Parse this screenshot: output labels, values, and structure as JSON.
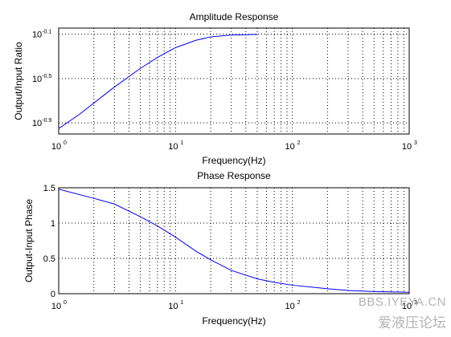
{
  "chart_data": [
    {
      "type": "line",
      "title": "Amplitude Response",
      "xlabel": "Frequency(Hz)",
      "ylabel": "Output/Input Ratio",
      "x_scale": "log",
      "y_scale": "log",
      "xlim": [
        1,
        1000
      ],
      "ylim": [
        0.1,
        0.9
      ],
      "grid": true,
      "x_ticks": [
        {
          "base": "10",
          "exp": "0"
        },
        {
          "base": "10",
          "exp": "1"
        },
        {
          "base": "10",
          "exp": "2"
        },
        {
          "base": "10",
          "exp": "3"
        }
      ],
      "y_ticks": [
        {
          "value": 0.1259,
          "base": "10",
          "exp": "-0.9"
        },
        {
          "value": 0.3162,
          "base": "10",
          "exp": "-0.5"
        },
        {
          "value": 0.7943,
          "base": "10",
          "exp": "-0.1"
        }
      ],
      "series": [
        {
          "color": "#0000ff",
          "x": [
            1,
            1.5,
            2,
            3,
            5,
            7,
            10,
            15,
            20,
            30,
            50
          ],
          "y": [
            0.112,
            0.15,
            0.19,
            0.265,
            0.39,
            0.49,
            0.6,
            0.7,
            0.75,
            0.78,
            0.79
          ]
        }
      ]
    },
    {
      "type": "line",
      "title": "Phase Response",
      "xlabel": "Frequency(Hz)",
      "ylabel": "Output-Input Phase",
      "x_scale": "log",
      "y_scale": "linear",
      "xlim": [
        1,
        1000
      ],
      "ylim": [
        0,
        1.5
      ],
      "grid": true,
      "x_ticks": [
        {
          "base": "10",
          "exp": "0"
        },
        {
          "base": "10",
          "exp": "1"
        },
        {
          "base": "10",
          "exp": "2"
        },
        {
          "base": "10",
          "exp": "3"
        }
      ],
      "y_ticks": [
        {
          "value": 0,
          "label": "0"
        },
        {
          "value": 0.5,
          "label": "0.5"
        },
        {
          "value": 1,
          "label": "1"
        },
        {
          "value": 1.5,
          "label": "1.5"
        }
      ],
      "series": [
        {
          "color": "#0000ff",
          "x": [
            1,
            2,
            3,
            5,
            7,
            10,
            15,
            20,
            30,
            50,
            70,
            100,
            200,
            300,
            500,
            1000
          ],
          "y": [
            1.48,
            1.35,
            1.27,
            1.09,
            0.96,
            0.8,
            0.6,
            0.48,
            0.33,
            0.21,
            0.16,
            0.12,
            0.07,
            0.045,
            0.03,
            0.02
          ]
        }
      ]
    }
  ],
  "watermark": {
    "line1": "BBS.IYEYA.CN",
    "line2": "爱液压论坛"
  }
}
